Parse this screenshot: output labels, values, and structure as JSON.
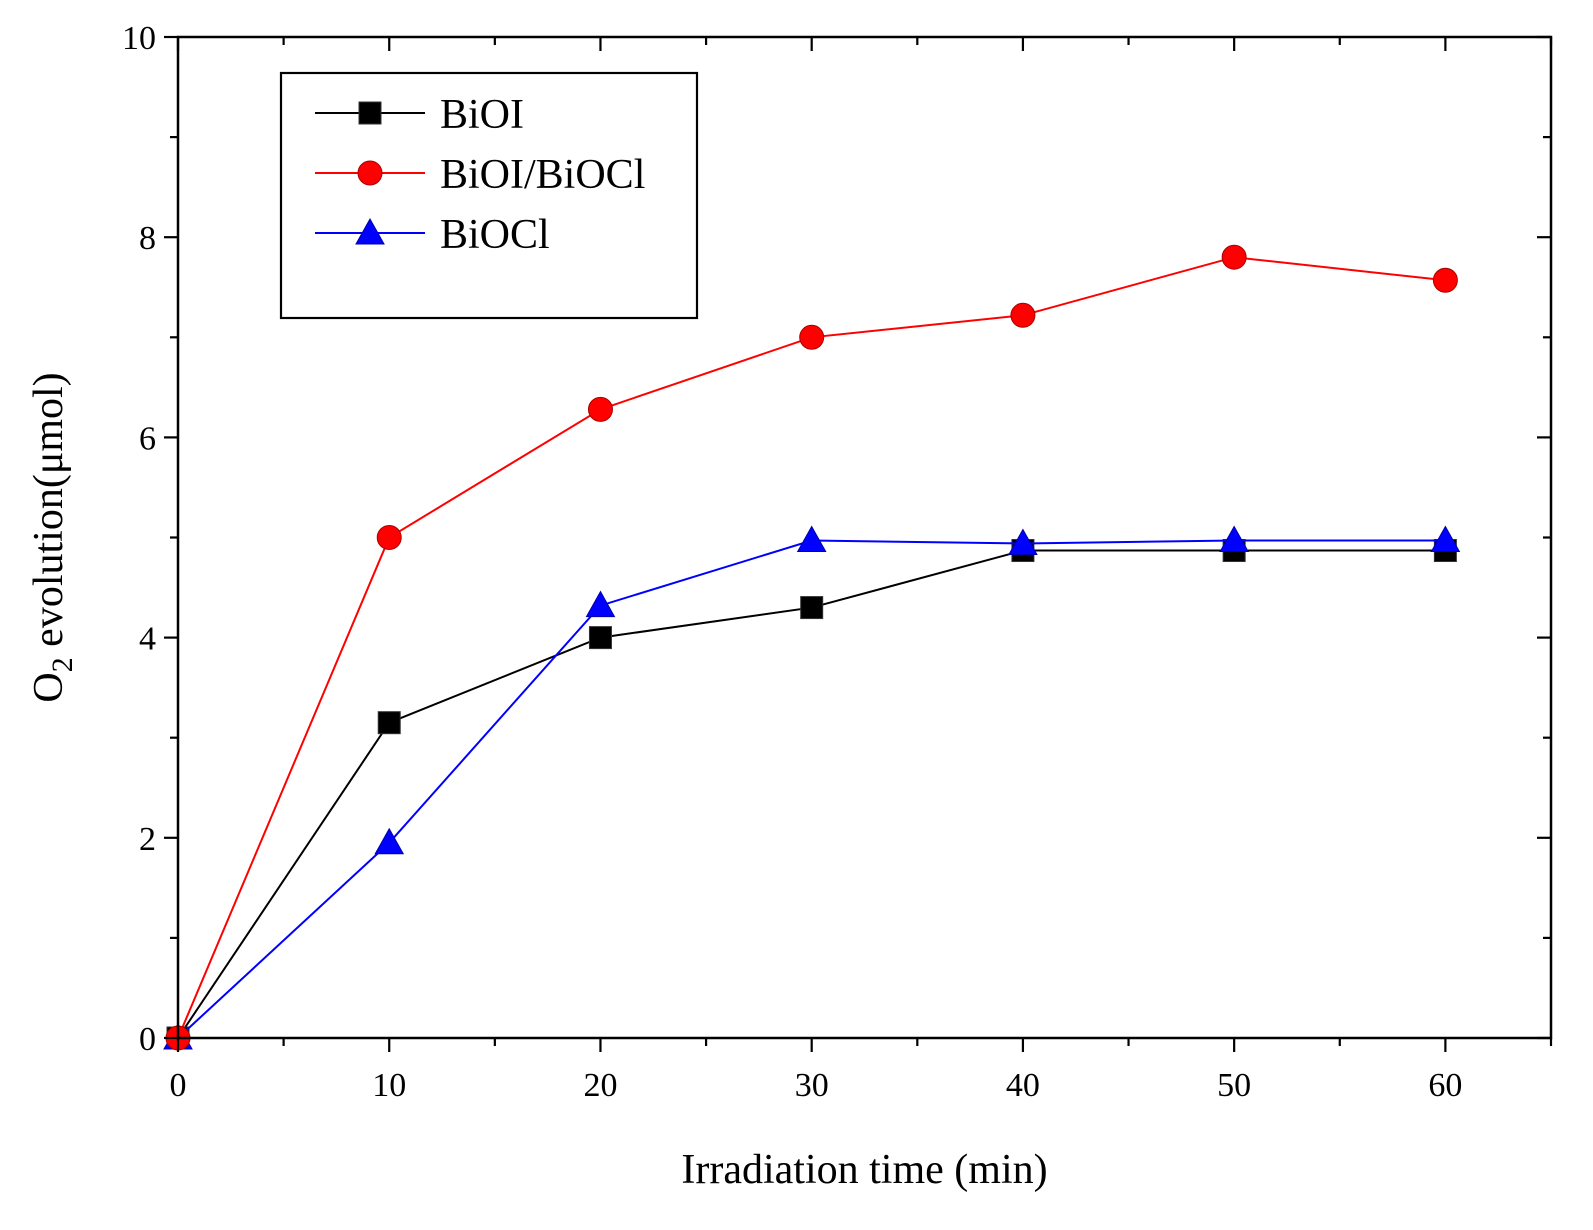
{
  "chart_data": {
    "type": "line",
    "title": "",
    "xlabel": "Irradiation time (min)",
    "ylabel": {
      "prefix": "O",
      "subscript": "2",
      "suffix": " evolution(μmol)"
    },
    "xlim": [
      0,
      65
    ],
    "ylim": [
      0,
      10
    ],
    "x_major_ticks": [
      0,
      10,
      20,
      30,
      40,
      50,
      60
    ],
    "x_minor_ticks": [
      5,
      15,
      25,
      35,
      45,
      55,
      65
    ],
    "y_major_ticks": [
      0,
      2,
      4,
      6,
      8,
      10
    ],
    "y_minor_ticks": [
      1,
      3,
      5,
      7,
      9
    ],
    "x_tick_labels": [
      "0",
      "10",
      "20",
      "30",
      "40",
      "50",
      "60"
    ],
    "y_tick_labels": [
      "0",
      "2",
      "4",
      "6",
      "8",
      "10"
    ],
    "grid": false,
    "legend_position": "top-left",
    "x": [
      0,
      10,
      20,
      30,
      40,
      50,
      60
    ],
    "series": [
      {
        "name": "BiOI",
        "values": [
          0,
          3.15,
          4.0,
          4.3,
          4.87,
          4.87,
          4.87
        ],
        "color": "#000000",
        "marker": "square"
      },
      {
        "name": "BiOI/BiOCl",
        "values": [
          0,
          5.0,
          6.28,
          7.0,
          7.22,
          7.8,
          7.57
        ],
        "color": "#ff0000",
        "marker": "circle"
      },
      {
        "name": "BiOCl",
        "values": [
          0,
          1.95,
          4.32,
          4.97,
          4.94,
          4.97,
          4.97
        ],
        "color": "#0000ff",
        "marker": "triangle"
      }
    ]
  }
}
